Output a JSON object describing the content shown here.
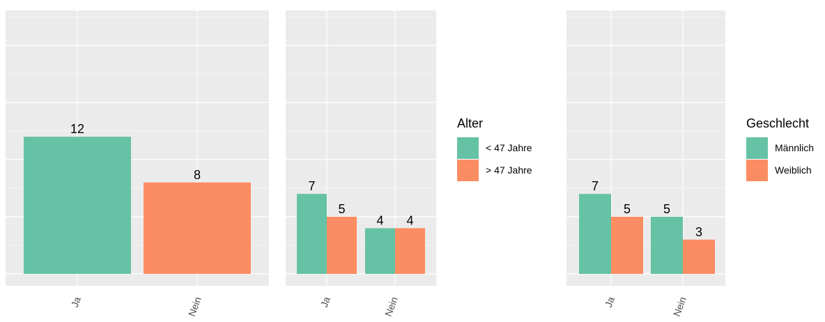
{
  "colors": {
    "green": "#66c2a5",
    "orange": "#fc8d62",
    "panel": "#ebebeb",
    "grid": "#ffffff"
  },
  "chart_data": [
    {
      "type": "bar",
      "categories": [
        "Ja",
        "Nein"
      ],
      "values": [
        12,
        8
      ],
      "bar_colors": [
        "green",
        "orange"
      ],
      "ylim": [
        0,
        24
      ],
      "grid": true
    },
    {
      "type": "bar",
      "grouped": true,
      "categories": [
        "Ja",
        "Nein"
      ],
      "series": [
        {
          "name": "< 47 Jahre",
          "values": [
            7,
            4
          ],
          "color": "green"
        },
        {
          "name": "> 47 Jahre",
          "values": [
            5,
            4
          ],
          "color": "orange"
        }
      ],
      "legend_title": "Alter",
      "legend_placement": "right",
      "ylim": [
        0,
        24
      ],
      "grid": true
    },
    {
      "type": "bar",
      "grouped": true,
      "categories": [
        "Ja",
        "Nein"
      ],
      "series": [
        {
          "name": "Männlich",
          "values": [
            7,
            5
          ],
          "color": "green"
        },
        {
          "name": "Weiblich",
          "values": [
            5,
            3
          ],
          "color": "orange"
        }
      ],
      "legend_title": "Geschlecht",
      "legend_placement": "right",
      "ylim": [
        0,
        24
      ],
      "grid": true
    }
  ]
}
